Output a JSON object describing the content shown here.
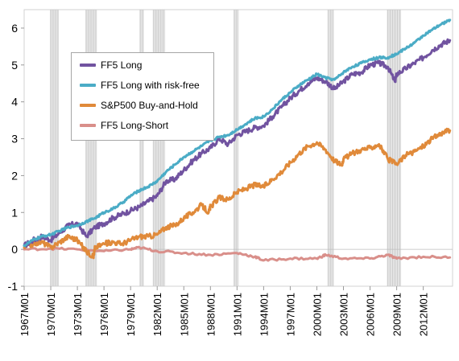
{
  "chart_data": {
    "type": "line",
    "title": "",
    "xlabel": "",
    "ylabel": "",
    "ylim": [
      -1,
      6.5
    ],
    "yticks": [
      -1,
      0,
      1,
      2,
      3,
      4,
      5,
      6
    ],
    "ytick_labels": [
      "-1",
      "0",
      "1",
      "2",
      "3",
      "4",
      "5",
      "6"
    ],
    "xlim": [
      1967.0,
      2015.3
    ],
    "xtick_labels": [
      "1967M01",
      "1970M01",
      "1973M01",
      "1976M01",
      "1979M01",
      "1982M01",
      "1985M01",
      "1988M01",
      "1991M01",
      "1994M01",
      "1997M01",
      "2000M01",
      "2003M01",
      "2006M01",
      "2009M01",
      "2012M01"
    ],
    "xtick_values": [
      1967,
      1970,
      1973,
      1976,
      1979,
      1982,
      1985,
      1988,
      1991,
      1994,
      1997,
      2000,
      2003,
      2006,
      2009,
      2012
    ],
    "recession_shading": [
      [
        1969.9,
        1970.9
      ],
      [
        1973.9,
        1975.2
      ],
      [
        1980.0,
        1980.5
      ],
      [
        1981.5,
        1982.9
      ],
      [
        1990.6,
        1991.2
      ],
      [
        2001.2,
        2001.9
      ],
      [
        2007.9,
        2009.5
      ]
    ],
    "grid": false,
    "legend_position": "upper-left",
    "series": [
      {
        "name": "FF5 Long",
        "color": "#7153a0",
        "x": [
          1967,
          1968,
          1969,
          1970,
          1971,
          1972,
          1973,
          1974,
          1975,
          1976,
          1977,
          1978,
          1979,
          1980,
          1981,
          1982,
          1983,
          1984,
          1985,
          1986,
          1987,
          1988,
          1989,
          1990,
          1991,
          1992,
          1993,
          1994,
          1995,
          1996,
          1997,
          1998,
          1999,
          2000,
          2001,
          2002,
          2003,
          2004,
          2005,
          2006,
          2007,
          2008,
          2008.8,
          2009,
          2010,
          2011,
          2012,
          2013,
          2014,
          2015
        ],
        "values": [
          0.1,
          0.25,
          0.35,
          0.25,
          0.45,
          0.65,
          0.7,
          0.35,
          0.6,
          0.7,
          0.85,
          0.95,
          1.05,
          1.15,
          1.3,
          1.45,
          1.85,
          1.9,
          2.15,
          2.4,
          2.6,
          2.75,
          3.0,
          2.85,
          3.1,
          3.2,
          3.3,
          3.35,
          3.6,
          3.85,
          4.1,
          4.3,
          4.5,
          4.65,
          4.55,
          4.35,
          4.55,
          4.75,
          4.8,
          5.0,
          5.05,
          4.95,
          4.55,
          4.75,
          4.9,
          5.05,
          5.2,
          5.4,
          5.55,
          5.67
        ]
      },
      {
        "name": "FF5 Long with risk-free",
        "color": "#4bacc6",
        "x": [
          1967,
          1968,
          1969,
          1970,
          1971,
          1972,
          1973,
          1974,
          1975,
          1976,
          1977,
          1978,
          1979,
          1980,
          1981,
          1982,
          1983,
          1984,
          1985,
          1986,
          1987,
          1988,
          1989,
          1990,
          1991,
          1992,
          1993,
          1994,
          1995,
          1996,
          1997,
          1998,
          1999,
          2000,
          2001,
          2002,
          2003,
          2004,
          2005,
          2006,
          2007,
          2008,
          2009,
          2010,
          2011,
          2012,
          2013,
          2014,
          2015
        ],
        "values": [
          0.1,
          0.25,
          0.35,
          0.4,
          0.5,
          0.6,
          0.65,
          0.75,
          0.85,
          1.0,
          1.1,
          1.25,
          1.45,
          1.6,
          1.7,
          1.85,
          2.1,
          2.3,
          2.5,
          2.65,
          2.8,
          2.95,
          3.05,
          3.1,
          3.25,
          3.4,
          3.55,
          3.6,
          3.8,
          4.05,
          4.25,
          4.45,
          4.6,
          4.75,
          4.65,
          4.6,
          4.8,
          4.95,
          5.05,
          5.15,
          5.2,
          5.2,
          5.3,
          5.45,
          5.6,
          5.8,
          5.95,
          6.1,
          6.22
        ]
      },
      {
        "name": "S&P500 Buy-and-Hold",
        "color": "#e08a3a",
        "x": [
          1967,
          1968,
          1969,
          1970,
          1971,
          1972,
          1973,
          1974,
          1974.8,
          1975,
          1976,
          1977,
          1978,
          1979,
          1980,
          1981,
          1982,
          1983,
          1984,
          1985,
          1986,
          1987,
          1987.8,
          1988,
          1989,
          1990,
          1991,
          1992,
          1993,
          1994,
          1995,
          1996,
          1997,
          1998,
          1999,
          2000,
          2001,
          2002,
          2002.8,
          2003,
          2004,
          2005,
          2006,
          2007,
          2008,
          2009,
          2010,
          2011,
          2012,
          2013,
          2014,
          2015
        ],
        "values": [
          0.05,
          0.15,
          0.2,
          0.05,
          0.2,
          0.35,
          0.25,
          -0.05,
          -0.2,
          0.05,
          0.15,
          0.2,
          0.15,
          0.25,
          0.35,
          0.35,
          0.4,
          0.6,
          0.65,
          0.85,
          1.0,
          1.2,
          1.0,
          1.15,
          1.4,
          1.35,
          1.55,
          1.65,
          1.75,
          1.7,
          1.9,
          2.1,
          2.35,
          2.6,
          2.8,
          2.9,
          2.7,
          2.4,
          2.3,
          2.45,
          2.6,
          2.7,
          2.75,
          2.85,
          2.45,
          2.3,
          2.55,
          2.65,
          2.8,
          3.0,
          3.15,
          3.22
        ]
      },
      {
        "name": "FF5 Long-Short",
        "color": "#d98f8a",
        "x": [
          1967,
          1970,
          1973,
          1976,
          1979,
          1980,
          1982,
          1985,
          1988,
          1991,
          1993,
          1994,
          1997,
          2000,
          2001,
          2003,
          2006,
          2008,
          2009,
          2012,
          2015
        ],
        "values": [
          0.0,
          0.02,
          0.0,
          -0.05,
          0.0,
          0.05,
          -0.05,
          -0.1,
          -0.15,
          -0.1,
          -0.2,
          -0.3,
          -0.25,
          -0.25,
          -0.15,
          -0.25,
          -0.25,
          -0.15,
          -0.25,
          -0.2,
          -0.22
        ]
      }
    ]
  }
}
